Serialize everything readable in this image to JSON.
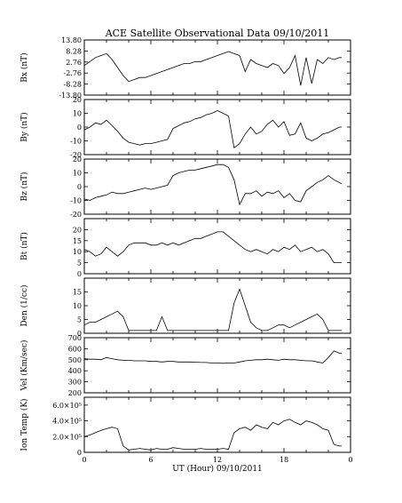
{
  "chart_data": {
    "type": "line",
    "title": "ACE Satellite Observational Data   09/10/2011",
    "xlabel": "UT (Hour)  09/10/2011",
    "xlim": [
      0,
      24
    ],
    "xticks": [
      "0",
      "6",
      "12",
      "18",
      "0"
    ],
    "x_tick_values": [
      0,
      6,
      12,
      18,
      24
    ],
    "panels": [
      {
        "ylabel": "Bx (nT)",
        "ylim": [
          -13.8,
          13.8
        ],
        "yticks": [
          "13.80",
          "8.28",
          "2.76",
          "-2.76",
          "-8.28",
          "-13.80"
        ],
        "y_tick_values": [
          13.8,
          8.28,
          2.76,
          -2.76,
          -8.28,
          -13.8
        ],
        "x": [
          0,
          0.5,
          1,
          1.5,
          2,
          2.5,
          3,
          3.5,
          4,
          4.5,
          5,
          5.5,
          6,
          6.5,
          7,
          7.5,
          8,
          8.5,
          9,
          9.5,
          10,
          10.5,
          11,
          11.5,
          12,
          12.5,
          13,
          13.5,
          14,
          14.5,
          15,
          15.5,
          16,
          16.5,
          17,
          17.5,
          18,
          18.5,
          19,
          19.5,
          20,
          20.5,
          21,
          21.5,
          22,
          22.5,
          23,
          23.2
        ],
        "y": [
          1,
          3,
          5,
          6,
          7,
          4,
          0,
          -4,
          -7,
          -6,
          -5,
          -5,
          -4,
          -3,
          -2,
          -1,
          0,
          1,
          2,
          2,
          3,
          3,
          4,
          5,
          6,
          7,
          8,
          7,
          6,
          -2,
          4,
          2,
          1,
          0,
          2,
          1,
          -3,
          0,
          6,
          -9,
          5,
          -8,
          4,
          2,
          5,
          4,
          5,
          5
        ]
      },
      {
        "ylabel": "By (nT)",
        "ylim": [
          -20,
          20
        ],
        "yticks": [
          "20",
          "10",
          "0",
          "-10",
          "-20"
        ],
        "y_tick_values": [
          20,
          10,
          0,
          -10,
          -20
        ],
        "x": [
          0,
          0.5,
          1,
          1.5,
          2,
          2.5,
          3,
          3.5,
          4,
          4.5,
          5,
          5.5,
          6,
          6.5,
          7,
          7.5,
          8,
          8.5,
          9,
          9.5,
          10,
          10.5,
          11,
          11.5,
          12,
          12.5,
          13,
          13.5,
          14,
          14.5,
          15,
          15.5,
          16,
          16.5,
          17,
          17.5,
          18,
          18.5,
          19,
          19.5,
          20,
          20.5,
          21,
          21.5,
          22,
          22.5,
          23,
          23.2
        ],
        "y": [
          -2,
          0,
          3,
          2,
          5,
          1,
          -3,
          -8,
          -11,
          -12,
          -13,
          -12,
          -12,
          -11,
          -10,
          -9,
          -1,
          1,
          3,
          4,
          6,
          7,
          9,
          10,
          12,
          10,
          8,
          -15,
          -12,
          -5,
          0,
          -5,
          -3,
          2,
          5,
          0,
          4,
          -6,
          -5,
          3,
          -8,
          -10,
          -8,
          -5,
          -4,
          -2,
          0,
          0
        ]
      },
      {
        "ylabel": "Bz (nT)",
        "ylim": [
          -20,
          20
        ],
        "yticks": [
          "20",
          "10",
          "0",
          "-10",
          "-20"
        ],
        "y_tick_values": [
          20,
          10,
          0,
          -10,
          -20
        ],
        "x": [
          0,
          0.5,
          1,
          1.5,
          2,
          2.5,
          3,
          3.5,
          4,
          4.5,
          5,
          5.5,
          6,
          6.5,
          7,
          7.5,
          8,
          8.5,
          9,
          9.5,
          10,
          10.5,
          11,
          11.5,
          12,
          12.5,
          13,
          13.5,
          14,
          14.5,
          15,
          15.5,
          16,
          16.5,
          17,
          17.5,
          18,
          18.5,
          19,
          19.5,
          20,
          20.5,
          21,
          21.5,
          22,
          22.5,
          23,
          23.2
        ],
        "y": [
          -9,
          -10,
          -8,
          -7,
          -6,
          -4,
          -5,
          -5,
          -4,
          -3,
          -2,
          -1,
          -2,
          -1,
          0,
          1,
          8,
          10,
          11,
          12,
          12,
          13,
          14,
          15,
          16,
          16,
          14,
          5,
          -13,
          -5,
          -5,
          -3,
          -7,
          -4,
          -5,
          -3,
          -8,
          -5,
          -10,
          -11,
          -3,
          0,
          3,
          5,
          8,
          5,
          3,
          2
        ]
      },
      {
        "ylabel": "Bt (nT)",
        "ylim": [
          0,
          25
        ],
        "yticks": [
          "20",
          "15",
          "10",
          "5",
          "0"
        ],
        "y_tick_values": [
          20,
          15,
          10,
          5,
          0
        ],
        "x": [
          0,
          0.5,
          1,
          1.5,
          2,
          2.5,
          3,
          3.5,
          4,
          4.5,
          5,
          5.5,
          6,
          6.5,
          7,
          7.5,
          8,
          8.5,
          9,
          9.5,
          10,
          10.5,
          11,
          11.5,
          12,
          12.5,
          13,
          13.5,
          14,
          14.5,
          15,
          15.5,
          16,
          16.5,
          17,
          17.5,
          18,
          18.5,
          19,
          19.5,
          20,
          20.5,
          21,
          21.5,
          22,
          22.5,
          23,
          23.2
        ],
        "y": [
          11,
          10,
          8,
          9,
          12,
          10,
          8,
          10,
          13,
          14,
          14,
          14,
          13,
          13,
          14,
          13,
          14,
          13,
          14,
          15,
          16,
          16,
          17,
          18,
          19,
          19,
          17,
          15,
          13,
          11,
          10,
          11,
          10,
          9,
          11,
          10,
          12,
          11,
          13,
          10,
          11,
          12,
          10,
          11,
          9,
          5,
          5,
          5
        ]
      },
      {
        "ylabel": "Den (1/cc)",
        "ylim": [
          0,
          20
        ],
        "yticks": [
          "15",
          "10",
          "5",
          "0"
        ],
        "y_tick_values": [
          15,
          10,
          5,
          0
        ],
        "x": [
          0,
          0.5,
          1,
          1.5,
          2,
          2.5,
          3,
          3.5,
          4,
          4.5,
          5,
          5.5,
          6,
          6.5,
          7,
          7.5,
          8,
          8.5,
          9,
          9.5,
          10,
          10.5,
          11,
          11.5,
          12,
          12.5,
          13,
          13.5,
          14,
          14.5,
          15,
          15.5,
          16,
          16.5,
          17,
          17.5,
          18,
          18.5,
          19,
          19.5,
          20,
          20.5,
          21,
          21.5,
          22,
          22.5,
          23,
          23.2
        ],
        "y": [
          3,
          4,
          4,
          5,
          6,
          7,
          8,
          6,
          1,
          1,
          1,
          1,
          1,
          1,
          6,
          1,
          1,
          1,
          1,
          1,
          1,
          1,
          1,
          1,
          1,
          1,
          1,
          11,
          16,
          10,
          4,
          2,
          1,
          1,
          2,
          3,
          3,
          2,
          3,
          4,
          5,
          6,
          7,
          5,
          1,
          1,
          1,
          1
        ]
      },
      {
        "ylabel": "Vel (Km/sec)",
        "ylim": [
          200,
          700
        ],
        "yticks": [
          "700",
          "600",
          "500",
          "400",
          "300",
          "200"
        ],
        "y_tick_values": [
          700,
          600,
          500,
          400,
          300,
          200
        ],
        "x": [
          0,
          0.5,
          1,
          1.5,
          2,
          2.5,
          3,
          3.5,
          4,
          4.5,
          5,
          5.5,
          6,
          6.5,
          7,
          7.5,
          8,
          8.5,
          9,
          9.5,
          10,
          10.5,
          11,
          11.5,
          12,
          12.5,
          13,
          13.5,
          14,
          14.5,
          15,
          15.5,
          16,
          16.5,
          17,
          17.5,
          18,
          18.5,
          19,
          19.5,
          20,
          20.5,
          21,
          21.5,
          22,
          22.5,
          23,
          23.2
        ],
        "y": [
          510,
          505,
          505,
          500,
          520,
          510,
          500,
          495,
          495,
          490,
          490,
          490,
          485,
          485,
          480,
          485,
          485,
          480,
          480,
          480,
          478,
          475,
          475,
          470,
          470,
          468,
          470,
          470,
          480,
          490,
          495,
          500,
          500,
          505,
          500,
          495,
          505,
          500,
          500,
          495,
          490,
          490,
          480,
          470,
          520,
          580,
          560,
          560
        ]
      },
      {
        "ylabel": "Ion Temp (K)",
        "ylim": [
          0,
          700000
        ],
        "yticks": [
          "6.0×10⁵",
          "4.0×10⁵",
          "2.0×10⁵",
          "0"
        ],
        "y_tick_values": [
          600000,
          400000,
          200000,
          0
        ],
        "x": [
          0,
          0.5,
          1,
          1.5,
          2,
          2.5,
          3,
          3.5,
          4,
          4.5,
          5,
          5.5,
          6,
          6.5,
          7,
          7.5,
          8,
          8.5,
          9,
          9.5,
          10,
          10.5,
          11,
          11.5,
          12,
          12.5,
          13,
          13.5,
          14,
          14.5,
          15,
          15.5,
          16,
          16.5,
          17,
          17.5,
          18,
          18.5,
          19,
          19.5,
          20,
          20.5,
          21,
          21.5,
          22,
          22.5,
          23,
          23.2
        ],
        "y": [
          200000,
          220000,
          250000,
          280000,
          300000,
          320000,
          300000,
          80000,
          30000,
          40000,
          50000,
          40000,
          30000,
          50000,
          40000,
          40000,
          60000,
          50000,
          40000,
          40000,
          40000,
          50000,
          40000,
          40000,
          40000,
          50000,
          40000,
          250000,
          300000,
          320000,
          280000,
          350000,
          320000,
          300000,
          380000,
          350000,
          400000,
          420000,
          380000,
          350000,
          400000,
          380000,
          350000,
          300000,
          280000,
          100000,
          80000,
          80000
        ]
      }
    ]
  }
}
